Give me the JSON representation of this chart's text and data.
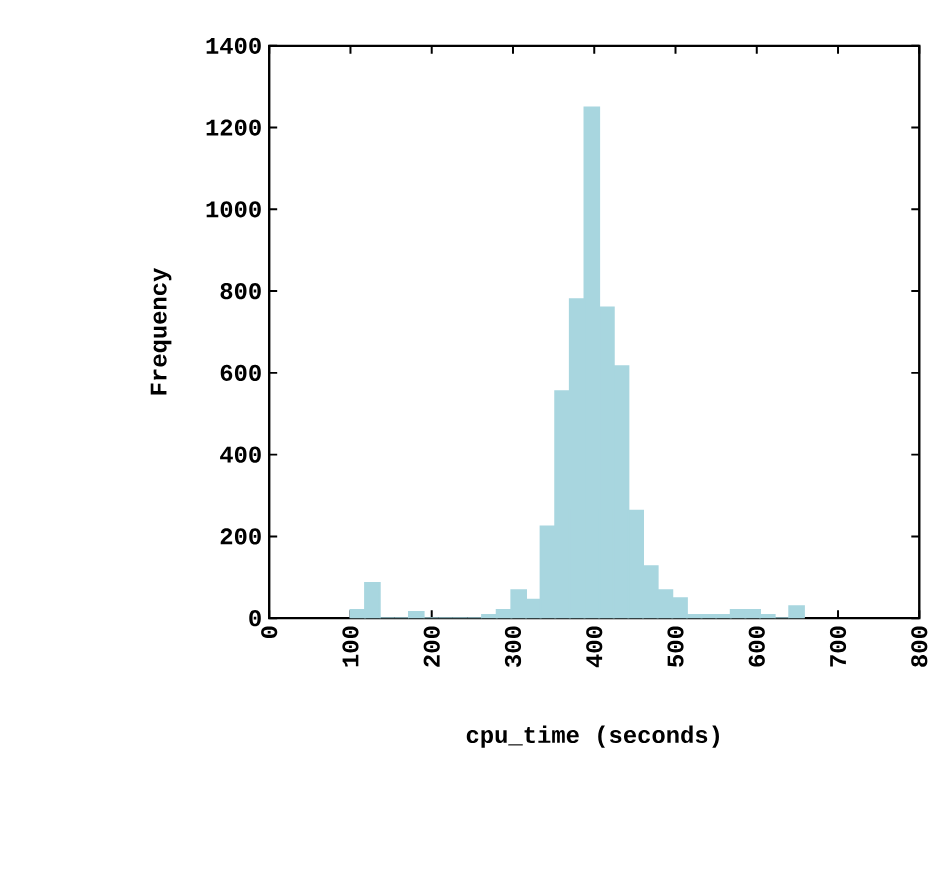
{
  "chart_data": {
    "type": "histogram",
    "xlabel": "cpu_time (seconds)",
    "ylabel": "Frequency",
    "bins": [
      100,
      118,
      136,
      154,
      172,
      190,
      208,
      226,
      244,
      262,
      280,
      298,
      316,
      334,
      352,
      370,
      388,
      406,
      424,
      442,
      460,
      478,
      496,
      514,
      532,
      550,
      568,
      586,
      604,
      622,
      640,
      658
    ],
    "values": [
      20,
      86,
      0,
      0,
      15,
      0,
      0,
      0,
      0,
      8,
      20,
      68,
      45,
      224,
      555,
      780,
      1249,
      760,
      616,
      263,
      127,
      68,
      49,
      8,
      8,
      8,
      20,
      20,
      8,
      0,
      29
    ],
    "color": "#a8d6df",
    "xlim": [
      0,
      800
    ],
    "xticks": [
      0,
      100,
      200,
      300,
      400,
      500,
      600,
      700,
      800
    ],
    "ylim": [
      0,
      1400
    ],
    "yticks": [
      0,
      200,
      400,
      600,
      800,
      1000,
      1200,
      1400
    ],
    "grid": false
  }
}
